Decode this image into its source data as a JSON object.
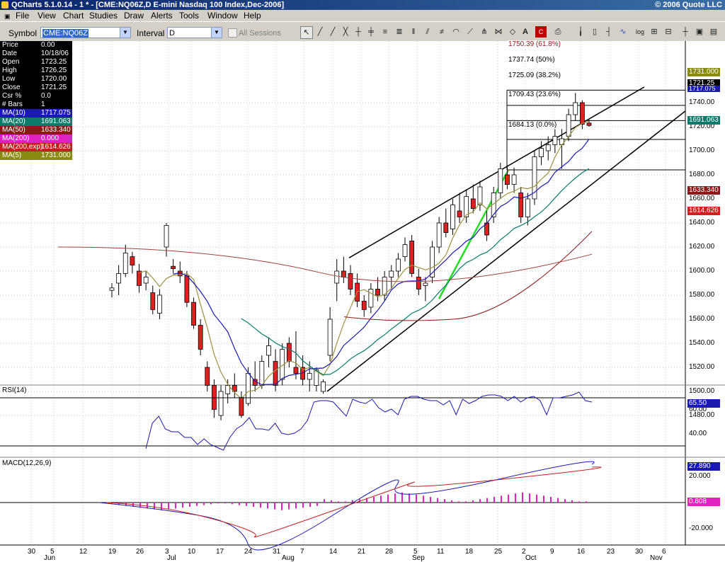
{
  "window": {
    "title": "QCharts 5.1.0.14 - 1 * - [CME:NQ06Z,D E-mini Nasdaq 100 Index,Dec-2006]",
    "copyright": "© 2006 Quote LLC"
  },
  "menu": [
    "File",
    "View",
    "Chart",
    "Studies",
    "Draw",
    "Alerts",
    "Tools",
    "Window",
    "Help"
  ],
  "toolbar": {
    "symbol_label": "Symbol",
    "symbol_value": "CME:NQ06Z",
    "interval_label": "Interval",
    "interval_value": "D",
    "all_sessions_label": "All Sessions"
  },
  "info": [
    {
      "k": "Price",
      "v": "0.00",
      "bg": "#000000"
    },
    {
      "k": "Date",
      "v": "10/18/06",
      "bg": "#000000"
    },
    {
      "k": "Open",
      "v": "1723.25",
      "bg": "#000000"
    },
    {
      "k": "High",
      "v": "1726.25",
      "bg": "#000000"
    },
    {
      "k": "Low",
      "v": "1720.00",
      "bg": "#000000"
    },
    {
      "k": "Close",
      "v": "1721.25",
      "bg": "#000000"
    },
    {
      "k": "Csr %",
      "v": "0.0",
      "bg": "#000000"
    },
    {
      "k": "# Bars",
      "v": "1",
      "bg": "#000000"
    },
    {
      "k": "MA(10)",
      "v": "1717.075",
      "bg": "#1a1ab0"
    },
    {
      "k": "MA(20)",
      "v": "1691.063",
      "bg": "#0a7a6a"
    },
    {
      "k": "MA(50)",
      "v": "1633.340",
      "bg": "#8a1a1a"
    },
    {
      "k": "MA(200)",
      "v": "0.000",
      "bg": "#e020c0"
    },
    {
      "k": "MA(200,exp)",
      "v": "1614.626",
      "bg": "#c02020"
    },
    {
      "k": "MA(5)",
      "v": "1731.000",
      "bg": "#8a8a10"
    }
  ],
  "price_axis": [
    "1740.00",
    "1720.00",
    "1700.00",
    "1680.00",
    "1660.00",
    "1640.00",
    "1620.00",
    "1600.00",
    "1580.00",
    "1560.00",
    "1540.00",
    "1520.00",
    "1500.00",
    "1480.00"
  ],
  "price_tags": [
    {
      "v": "1731.000",
      "bg": "#8a8a10",
      "fg": "#ffffff"
    },
    {
      "v": "1721.25",
      "bg": "#000000",
      "fg": "#ffffff"
    },
    {
      "v": "1717.075",
      "bg": "#1a1ab0",
      "fg": "#ffffff"
    },
    {
      "v": "1691.063",
      "bg": "#0a7a6a",
      "fg": "#ffffff"
    },
    {
      "v": "1633.340",
      "bg": "#8a1a1a",
      "fg": "#ffffff"
    },
    {
      "v": "1614.626",
      "bg": "#d02020",
      "fg": "#ffffff"
    }
  ],
  "fib_levels": [
    "1750.39 (61.8%)",
    "1737.74 (50%)",
    "1725.09 (38.2%)",
    "1709.43 (23.6%)",
    "1684.13 (0.0%)"
  ],
  "rsi": {
    "label": "RSI(14)",
    "axis": [
      "60.00",
      "40.00"
    ],
    "tag": "65.50"
  },
  "macd": {
    "label": "MACD(12,26,9)",
    "axis": [
      "20.000",
      "-20.000"
    ],
    "tag1": "27.890",
    "tag2": "0.808"
  },
  "x_days": [
    "30",
    "5",
    "12",
    "19",
    "26",
    "3",
    "10",
    "17",
    "24",
    "31",
    "7",
    "14",
    "21",
    "28",
    "5",
    "11",
    "18",
    "25",
    "2",
    "9",
    "16",
    "23",
    "30",
    "6"
  ],
  "x_months": [
    "Jun",
    "Jul",
    "Aug",
    "Sep",
    "Oct",
    "Nov"
  ],
  "chart_data": {
    "type": "candlestick",
    "ylim": [
      1470,
      1755
    ],
    "candles": [
      {
        "o": 1584,
        "h": 1590,
        "l": 1578,
        "c": 1586
      },
      {
        "o": 1590,
        "h": 1605,
        "l": 1580,
        "c": 1598
      },
      {
        "o": 1598,
        "h": 1622,
        "l": 1595,
        "c": 1615
      },
      {
        "o": 1612,
        "h": 1616,
        "l": 1598,
        "c": 1605
      },
      {
        "o": 1600,
        "h": 1606,
        "l": 1582,
        "c": 1588
      },
      {
        "o": 1590,
        "h": 1600,
        "l": 1584,
        "c": 1595
      },
      {
        "o": 1582,
        "h": 1588,
        "l": 1564,
        "c": 1568
      },
      {
        "o": 1565,
        "h": 1585,
        "l": 1560,
        "c": 1580
      },
      {
        "o": 1620,
        "h": 1640,
        "l": 1612,
        "c": 1638
      },
      {
        "o": 1604,
        "h": 1610,
        "l": 1598,
        "c": 1602
      },
      {
        "o": 1600,
        "h": 1608,
        "l": 1590,
        "c": 1596
      },
      {
        "o": 1596,
        "h": 1600,
        "l": 1570,
        "c": 1574
      },
      {
        "o": 1574,
        "h": 1578,
        "l": 1552,
        "c": 1555
      },
      {
        "o": 1555,
        "h": 1560,
        "l": 1530,
        "c": 1535
      },
      {
        "o": 1520,
        "h": 1525,
        "l": 1500,
        "c": 1505
      },
      {
        "o": 1505,
        "h": 1510,
        "l": 1478,
        "c": 1485
      },
      {
        "o": 1480,
        "h": 1505,
        "l": 1476,
        "c": 1500
      },
      {
        "o": 1498,
        "h": 1510,
        "l": 1490,
        "c": 1505
      },
      {
        "o": 1505,
        "h": 1515,
        "l": 1495,
        "c": 1500
      },
      {
        "o": 1495,
        "h": 1500,
        "l": 1478,
        "c": 1480
      },
      {
        "o": 1490,
        "h": 1520,
        "l": 1488,
        "c": 1515
      },
      {
        "o": 1510,
        "h": 1525,
        "l": 1500,
        "c": 1505
      },
      {
        "o": 1505,
        "h": 1530,
        "l": 1502,
        "c": 1525
      },
      {
        "o": 1530,
        "h": 1545,
        "l": 1520,
        "c": 1538
      },
      {
        "o": 1525,
        "h": 1535,
        "l": 1500,
        "c": 1505
      },
      {
        "o": 1510,
        "h": 1540,
        "l": 1505,
        "c": 1535
      },
      {
        "o": 1540,
        "h": 1545,
        "l": 1520,
        "c": 1525
      },
      {
        "o": 1520,
        "h": 1550,
        "l": 1510,
        "c": 1515
      },
      {
        "o": 1520,
        "h": 1530,
        "l": 1505,
        "c": 1510
      },
      {
        "o": 1510,
        "h": 1525,
        "l": 1500,
        "c": 1515
      },
      {
        "o": 1505,
        "h": 1520,
        "l": 1500,
        "c": 1518
      },
      {
        "o": 1500,
        "h": 1510,
        "l": 1498,
        "c": 1508
      },
      {
        "o": 1530,
        "h": 1570,
        "l": 1525,
        "c": 1560
      },
      {
        "o": 1590,
        "h": 1610,
        "l": 1575,
        "c": 1600
      },
      {
        "o": 1600,
        "h": 1612,
        "l": 1590,
        "c": 1595
      },
      {
        "o": 1598,
        "h": 1605,
        "l": 1580,
        "c": 1585
      },
      {
        "o": 1590,
        "h": 1598,
        "l": 1570,
        "c": 1575
      },
      {
        "o": 1575,
        "h": 1580,
        "l": 1562,
        "c": 1568
      },
      {
        "o": 1570,
        "h": 1590,
        "l": 1565,
        "c": 1585
      },
      {
        "o": 1585,
        "h": 1595,
        "l": 1575,
        "c": 1580
      },
      {
        "o": 1580,
        "h": 1600,
        "l": 1575,
        "c": 1595
      },
      {
        "o": 1595,
        "h": 1605,
        "l": 1585,
        "c": 1600
      },
      {
        "o": 1600,
        "h": 1615,
        "l": 1595,
        "c": 1610
      },
      {
        "o": 1612,
        "h": 1628,
        "l": 1608,
        "c": 1622
      },
      {
        "o": 1625,
        "h": 1630,
        "l": 1595,
        "c": 1598
      },
      {
        "o": 1595,
        "h": 1602,
        "l": 1580,
        "c": 1585
      },
      {
        "o": 1588,
        "h": 1595,
        "l": 1575,
        "c": 1590
      },
      {
        "o": 1595,
        "h": 1625,
        "l": 1590,
        "c": 1620
      },
      {
        "o": 1620,
        "h": 1645,
        "l": 1615,
        "c": 1640
      },
      {
        "o": 1640,
        "h": 1652,
        "l": 1628,
        "c": 1632
      },
      {
        "o": 1635,
        "h": 1660,
        "l": 1630,
        "c": 1655
      },
      {
        "o": 1650,
        "h": 1665,
        "l": 1640,
        "c": 1645
      },
      {
        "o": 1645,
        "h": 1668,
        "l": 1640,
        "c": 1662
      },
      {
        "o": 1660,
        "h": 1672,
        "l": 1648,
        "c": 1652
      },
      {
        "o": 1655,
        "h": 1675,
        "l": 1650,
        "c": 1670
      },
      {
        "o": 1640,
        "h": 1650,
        "l": 1625,
        "c": 1630
      },
      {
        "o": 1645,
        "h": 1670,
        "l": 1640,
        "c": 1665
      },
      {
        "o": 1665,
        "h": 1690,
        "l": 1660,
        "c": 1685
      },
      {
        "o": 1680,
        "h": 1688,
        "l": 1668,
        "c": 1672
      },
      {
        "o": 1672,
        "h": 1686,
        "l": 1665,
        "c": 1680
      },
      {
        "o": 1665,
        "h": 1670,
        "l": 1640,
        "c": 1645
      },
      {
        "o": 1645,
        "h": 1665,
        "l": 1638,
        "c": 1660
      },
      {
        "o": 1660,
        "h": 1700,
        "l": 1655,
        "c": 1695
      },
      {
        "o": 1695,
        "h": 1708,
        "l": 1688,
        "c": 1702
      },
      {
        "o": 1700,
        "h": 1712,
        "l": 1692,
        "c": 1705
      },
      {
        "o": 1705,
        "h": 1718,
        "l": 1698,
        "c": 1712
      },
      {
        "o": 1705,
        "h": 1718,
        "l": 1685,
        "c": 1710
      },
      {
        "o": 1712,
        "h": 1735,
        "l": 1708,
        "c": 1730
      },
      {
        "o": 1730,
        "h": 1748,
        "l": 1725,
        "c": 1740
      },
      {
        "o": 1740,
        "h": 1742,
        "l": 1718,
        "c": 1722
      },
      {
        "o": 1723,
        "h": 1726,
        "l": 1720,
        "c": 1721
      }
    ]
  }
}
